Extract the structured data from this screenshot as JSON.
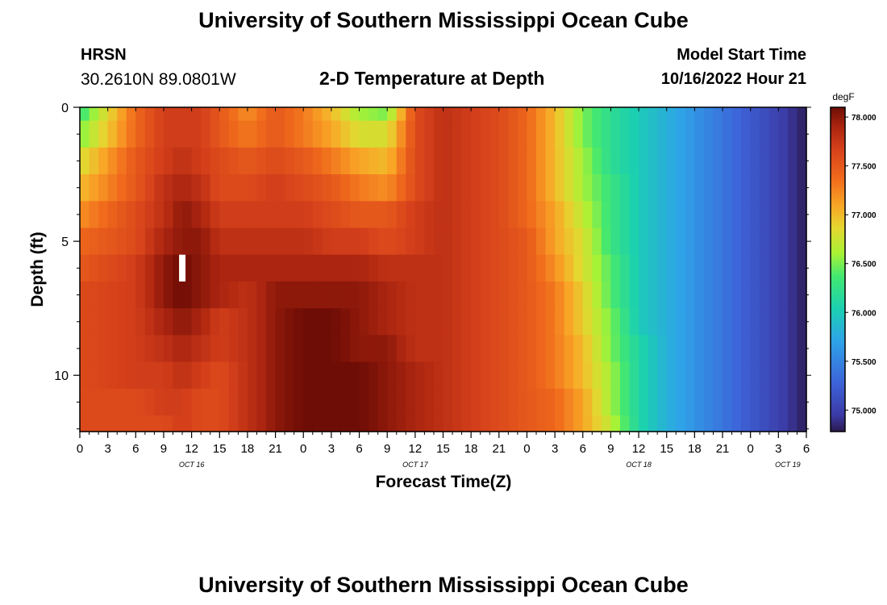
{
  "page_title": "University of Southern Mississippi Ocean Cube",
  "station": {
    "name": "HRSN",
    "coords": "30.2610N  89.0801W"
  },
  "model_start": {
    "label": "Model Start Time",
    "value": "10/16/2022 Hour 21"
  },
  "chart_data": {
    "type": "heatmap",
    "title": "2-D Temperature at Depth",
    "xlabel": "Forecast Time(Z)",
    "ylabel": "Depth (ft)",
    "x_range_hours": [
      0,
      78
    ],
    "y_range_ft": [
      0,
      12.1
    ],
    "y_ticks": [
      0,
      5,
      10
    ],
    "x_ticks": [
      "0",
      "3",
      "6",
      "9",
      "12",
      "15",
      "18",
      "21",
      "0",
      "3",
      "6",
      "9",
      "12",
      "15",
      "18",
      "21",
      "0",
      "3",
      "6",
      "9",
      "12",
      "15",
      "18",
      "21",
      "0",
      "3",
      "6"
    ],
    "date_labels": [
      {
        "text": "OCT 16",
        "hour": 12
      },
      {
        "text": "OCT 17",
        "hour": 36
      },
      {
        "text": "OCT 18",
        "hour": 60
      },
      {
        "text": "OCT 19",
        "hour": 76
      }
    ],
    "colorbar": {
      "unit": "degF",
      "min": 74.78,
      "max": 78.1,
      "ticks": [
        "75.000",
        "75.500",
        "76.000",
        "76.500",
        "77.000",
        "77.500",
        "78.000"
      ]
    },
    "depth_layers_ft": [
      0,
      1,
      2,
      3,
      4,
      5,
      6,
      7,
      8,
      9,
      10,
      11,
      12
    ],
    "time_hours": [
      0,
      6,
      9,
      11,
      13,
      15,
      18,
      21,
      24,
      27,
      30,
      33,
      36,
      39,
      42,
      45,
      48,
      51,
      54,
      57,
      60,
      63,
      66,
      69,
      72,
      75,
      78
    ],
    "temperature_degF": [
      [
        76.3,
        77.4,
        77.7,
        77.7,
        77.7,
        77.5,
        77.2,
        77.5,
        77.3,
        77.0,
        76.6,
        76.5,
        77.6,
        77.8,
        77.7,
        77.6,
        77.4,
        77.0,
        76.5,
        76.2,
        76.0,
        75.8,
        75.6,
        75.4,
        75.2,
        75.0,
        74.8
      ],
      [
        76.5,
        77.4,
        77.7,
        77.7,
        77.7,
        77.5,
        77.3,
        77.5,
        77.3,
        77.1,
        76.8,
        76.8,
        77.6,
        77.8,
        77.7,
        77.6,
        77.4,
        77.0,
        76.5,
        76.2,
        76.0,
        75.8,
        75.6,
        75.4,
        75.2,
        75.0,
        74.8
      ],
      [
        76.8,
        77.5,
        77.7,
        77.8,
        77.7,
        77.6,
        77.5,
        77.6,
        77.5,
        77.3,
        77.1,
        77.0,
        77.6,
        77.8,
        77.7,
        77.6,
        77.4,
        77.0,
        76.6,
        76.2,
        76.0,
        75.8,
        75.6,
        75.4,
        75.2,
        75.0,
        74.8
      ],
      [
        77.0,
        77.5,
        77.8,
        77.9,
        77.8,
        77.6,
        77.6,
        77.7,
        77.6,
        77.5,
        77.3,
        77.2,
        77.6,
        77.8,
        77.7,
        77.6,
        77.4,
        77.0,
        76.6,
        76.3,
        76.0,
        75.8,
        75.6,
        75.4,
        75.2,
        75.0,
        74.8
      ],
      [
        77.2,
        77.6,
        77.8,
        78.0,
        77.9,
        77.7,
        77.7,
        77.7,
        77.7,
        77.6,
        77.5,
        77.5,
        77.7,
        77.8,
        77.7,
        77.6,
        77.4,
        77.1,
        76.7,
        76.3,
        76.0,
        75.8,
        75.6,
        75.4,
        75.2,
        75.0,
        74.8
      ],
      [
        77.4,
        77.6,
        77.9,
        78.0,
        78.0,
        77.8,
        77.8,
        77.8,
        77.8,
        77.7,
        77.7,
        77.6,
        77.7,
        77.8,
        77.7,
        77.6,
        77.5,
        77.1,
        76.8,
        76.3,
        76.0,
        75.8,
        75.6,
        75.4,
        75.2,
        75.0,
        74.8
      ],
      [
        77.5,
        77.7,
        78.0,
        78.1,
        78.0,
        77.9,
        77.9,
        77.9,
        77.9,
        77.9,
        77.9,
        77.8,
        77.8,
        77.8,
        77.7,
        77.6,
        77.5,
        77.2,
        76.8,
        76.4,
        76.0,
        75.8,
        75.6,
        75.4,
        75.2,
        75.0,
        74.8
      ],
      [
        77.6,
        77.7,
        78.0,
        78.1,
        78.0,
        77.9,
        77.8,
        78.0,
        78.0,
        78.0,
        78.0,
        77.9,
        77.8,
        77.8,
        77.7,
        77.6,
        77.5,
        77.3,
        76.9,
        76.4,
        76.0,
        75.8,
        75.6,
        75.4,
        75.2,
        75.0,
        74.8
      ],
      [
        77.6,
        77.7,
        77.9,
        78.0,
        77.9,
        77.7,
        77.8,
        78.0,
        78.1,
        78.1,
        78.0,
        77.9,
        77.8,
        77.8,
        77.7,
        77.6,
        77.5,
        77.3,
        76.9,
        76.5,
        76.0,
        75.8,
        75.6,
        75.4,
        75.2,
        75.0,
        74.8
      ],
      [
        77.6,
        77.7,
        77.8,
        77.9,
        77.8,
        77.7,
        77.8,
        78.0,
        78.1,
        78.1,
        78.0,
        78.0,
        77.8,
        77.8,
        77.7,
        77.6,
        77.5,
        77.3,
        77.0,
        76.5,
        76.1,
        75.8,
        75.6,
        75.4,
        75.2,
        75.0,
        74.8
      ],
      [
        77.6,
        77.7,
        77.7,
        77.8,
        77.7,
        77.6,
        77.8,
        78.0,
        78.1,
        78.1,
        78.1,
        78.0,
        77.9,
        77.8,
        77.7,
        77.6,
        77.5,
        77.3,
        77.0,
        76.6,
        76.1,
        75.8,
        75.6,
        75.4,
        75.2,
        75.0,
        74.8
      ],
      [
        77.6,
        77.6,
        77.7,
        77.7,
        77.6,
        77.6,
        77.8,
        78.0,
        78.1,
        78.1,
        78.1,
        78.0,
        77.9,
        77.8,
        77.7,
        77.6,
        77.5,
        77.4,
        77.1,
        76.6,
        76.1,
        75.8,
        75.6,
        75.4,
        75.2,
        75.0,
        74.8
      ],
      [
        77.6,
        77.6,
        77.6,
        77.7,
        77.6,
        77.6,
        77.8,
        78.0,
        78.1,
        78.1,
        78.1,
        78.0,
        77.9,
        77.8,
        77.7,
        77.6,
        77.5,
        77.4,
        77.1,
        76.7,
        76.1,
        75.8,
        75.6,
        75.4,
        75.2,
        75.0,
        74.8
      ]
    ],
    "marker": {
      "hour": 11,
      "depth_ft_top": 5.5,
      "depth_ft_bottom": 6.5,
      "color": "#ffffff"
    }
  },
  "footer_title": "University of Southern Mississippi Ocean Cube"
}
